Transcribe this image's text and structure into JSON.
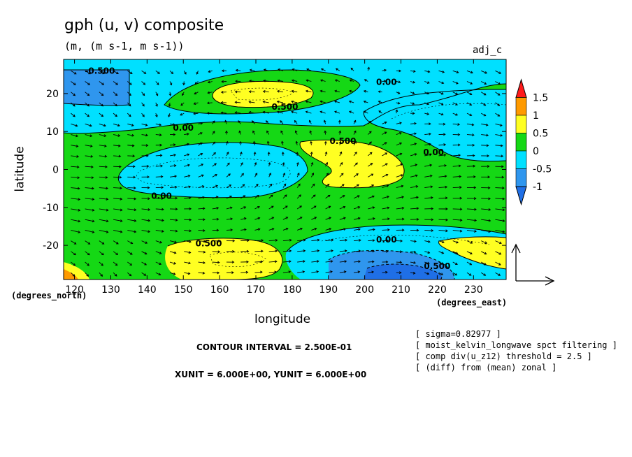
{
  "title": "gph (u, v) composite",
  "units": "(m, (m s-1, m s-1))",
  "dataset": "adj_c",
  "colors": {
    "lt_neg1": "#1f6fe6",
    "neg1_neg05": "#2f96ee",
    "neg05_0": "#00e0ff",
    "zero_05": "#15d815",
    "half_1": "#ffff22",
    "one_15": "#ff9a00",
    "gt_15": "#ff1a1a"
  },
  "chart_data": {
    "type": "heatmap",
    "title": "gph (u, v) composite",
    "xlabel": "longitude",
    "ylabel": "latitude",
    "x_unit_label": "(degrees_east)",
    "y_unit_label": "(degrees_north)",
    "xlim": [
      117,
      239
    ],
    "ylim": [
      -29,
      29
    ],
    "xticks": [
      120,
      130,
      140,
      150,
      160,
      170,
      180,
      190,
      200,
      210,
      220,
      230
    ],
    "yticks": [
      20,
      10,
      0,
      -10,
      -20
    ],
    "colorbar": {
      "levels": [
        -1,
        -0.5,
        0,
        0.5,
        1,
        1.5
      ],
      "labels": [
        "1.5",
        "1",
        "0.5",
        "0",
        "-0.5",
        "-1"
      ]
    },
    "contour_labels": [
      {
        "text": "-0.500",
        "x": 127,
        "y": 26
      },
      {
        "text": "0.00",
        "x": 206,
        "y": 23
      },
      {
        "text": "0.500",
        "x": 178,
        "y": 16.5
      },
      {
        "text": "0.00",
        "x": 150,
        "y": 11
      },
      {
        "text": "0.500",
        "x": 194,
        "y": 7.5
      },
      {
        "text": "0.00",
        "x": 219,
        "y": 4.5
      },
      {
        "text": "0.00",
        "x": 144,
        "y": -7
      },
      {
        "text": "0.00",
        "x": 206,
        "y": -18.5
      },
      {
        "text": "0.500",
        "x": 157,
        "y": -19.5
      },
      {
        "text": "0.500",
        "x": 220,
        "y": -25.5
      }
    ],
    "regions": [
      {
        "level": "neg1_neg05",
        "approx": "upper-left corner 117-135E, 16-27N"
      },
      {
        "level": "neg05_0",
        "approx": "north band 117-205E, 10-29N; east 195-239E, 6-20N"
      },
      {
        "level": "half_1",
        "approx": "167-182E, 14-22N; 183-210E, -5-8N; 142-183E, -20-29S; 219-239E, -18-23S"
      },
      {
        "level": "neg05_0",
        "approx": "equatorial 137-183E, -6-6; south 188-235E, -12-29S"
      },
      {
        "level": "neg1_neg05",
        "approx": "196-222E, -25-29S"
      },
      {
        "level": "lt_neg1",
        "approx": "203-220E, -27-29S"
      }
    ]
  },
  "vector_key": {
    "arrow_label": ""
  },
  "annotations": {
    "contour_interval": "CONTOUR INTERVAL = 2.500E-01",
    "units_line": "XUNIT = 6.000E+00, YUNIT = 6.000E+00",
    "notes": [
      "[ sigma=0.82977 ]",
      "[ moist_kelvin_longwave spct filtering ]",
      "[ comp div(u_z12) threshold = 2.5 ]",
      "[ (diff) from (mean) zonal ]"
    ]
  }
}
